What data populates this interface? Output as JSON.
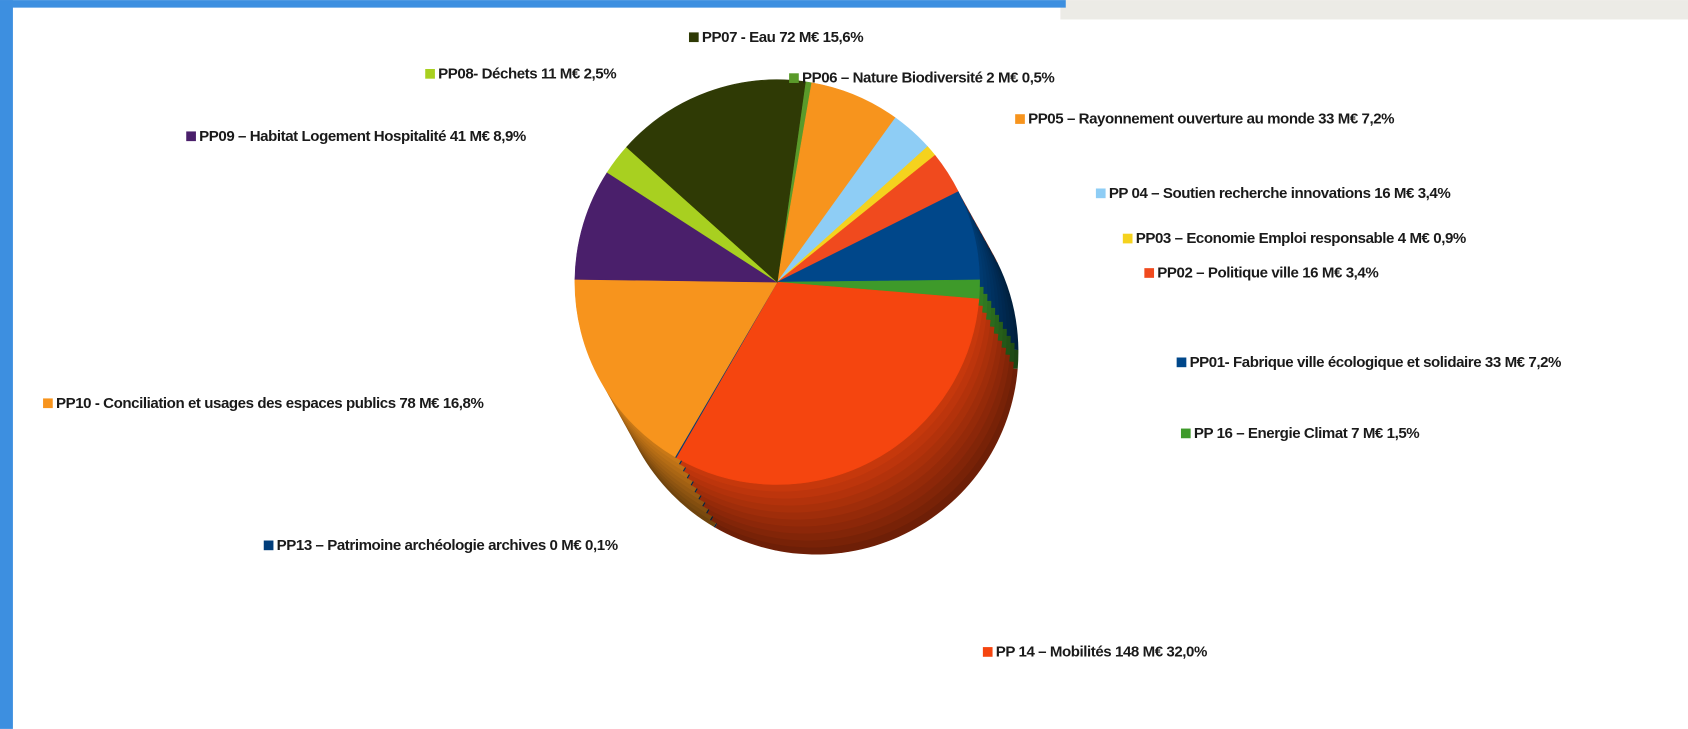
{
  "chart_data": {
    "type": "pie",
    "categories": [
      "PP06 – Nature Biodiversité 2 M€ 0,5%",
      "PP05 – Rayonnement ouverture au monde 33 M€ 7,2%",
      "PP 04 – Soutien recherche innovations 16 M€ 3,4%",
      "PP03 – Economie Emploi responsable 4 M€ 0,9%",
      "PP02 – Politique ville 16 M€ 3,4%",
      "PP01- Fabrique ville écologique et solidaire 33 M€ 7,2%",
      "PP 16 – Energie Climat 7 M€ 1,5%",
      "PP 14 – Mobilités 148 M€ 32,0%",
      "PP13 – Patrimoine archéologie archives 0 M€ 0,1%",
      "PP10 - Conciliation et usages des espaces publics  78 M€ 16,8%",
      "PP09 – Habitat Logement Hospitalité 41 M€ 8,9%",
      "PP08- Déchets 11 M€ 2,5%",
      "PP07 - Eau  72 M€ 15,6%"
    ],
    "values": [
      0.5,
      7.2,
      3.4,
      0.9,
      3.4,
      7.2,
      1.5,
      32.0,
      0.1,
      16.8,
      8.9,
      2.5,
      15.6
    ],
    "colors": [
      "#5a9a2a",
      "#f7941d",
      "#8ecdf5",
      "#f5d21e",
      "#f04a1e",
      "#00478a",
      "#3e9a2a",
      "#f5450f",
      "#003d7a",
      "#f7941d",
      "#4a1f6b",
      "#a8d020",
      "#2f3a05"
    ]
  }
}
